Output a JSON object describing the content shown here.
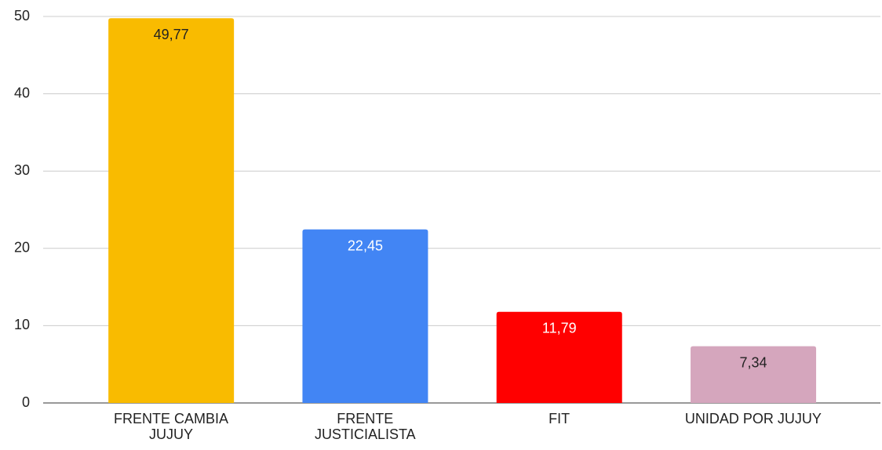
{
  "chart_data": {
    "type": "bar",
    "categories": [
      "FRENTE CAMBIA\nJUJUY",
      "FRENTE\nJUSTICIALISTA",
      "FIT",
      "UNIDAD POR JUJUY"
    ],
    "values": [
      49.77,
      22.45,
      11.79,
      7.34
    ],
    "value_labels": [
      "49,77",
      "22,45",
      "11,79",
      "7,34"
    ],
    "colors": [
      "#f9bb00",
      "#4285f4",
      "#ff0000",
      "#d5a6bd"
    ],
    "value_label_colors": [
      "#222222",
      "#ffffff",
      "#ffffff",
      "#222222"
    ],
    "ylim": [
      0,
      50
    ],
    "yticks": [
      0,
      10,
      20,
      30,
      40,
      50
    ],
    "grid": true
  }
}
